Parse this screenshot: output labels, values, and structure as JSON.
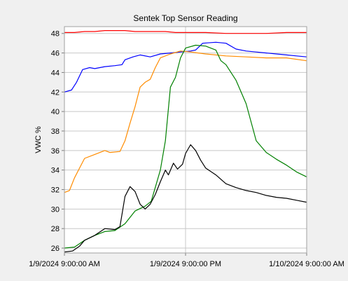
{
  "chart_data": {
    "type": "line",
    "title": "Sentek Top Sensor Reading",
    "xlabel": "",
    "ylabel": "VWC %",
    "x_ticks": [
      "1/9/2024 9:00:00 AM",
      "1/9/2024 9:00:00 PM",
      "1/10/2024 9:00:00 AM"
    ],
    "x_range_hours": [
      0,
      24
    ],
    "ylim": [
      25.5,
      48.7
    ],
    "y_ticks": [
      26,
      28,
      30,
      32,
      34,
      36,
      38,
      40,
      42,
      44,
      46,
      48
    ],
    "grid": true,
    "legend": "none",
    "series": [
      {
        "color": "#ff0000",
        "points": [
          [
            0,
            48.1
          ],
          [
            1,
            48.1
          ],
          [
            2,
            48.2
          ],
          [
            3,
            48.2
          ],
          [
            4,
            48.3
          ],
          [
            5,
            48.3
          ],
          [
            6,
            48.3
          ],
          [
            7,
            48.2
          ],
          [
            8,
            48.2
          ],
          [
            9,
            48.2
          ],
          [
            10,
            48.2
          ],
          [
            11,
            48.1
          ],
          [
            12,
            48.1
          ],
          [
            14,
            48.1
          ],
          [
            16,
            48.0
          ],
          [
            18,
            48.0
          ],
          [
            20,
            48.0
          ],
          [
            22,
            48.1
          ],
          [
            24,
            48.1
          ]
        ]
      },
      {
        "color": "#0000ff",
        "points": [
          [
            0,
            42.0
          ],
          [
            0.7,
            42.2
          ],
          [
            1.2,
            43.0
          ],
          [
            1.8,
            44.3
          ],
          [
            2.5,
            44.5
          ],
          [
            3,
            44.4
          ],
          [
            4,
            44.6
          ],
          [
            5,
            44.7
          ],
          [
            5.7,
            44.8
          ],
          [
            6,
            45.3
          ],
          [
            6.8,
            45.6
          ],
          [
            7.5,
            45.8
          ],
          [
            8.5,
            45.6
          ],
          [
            9.5,
            45.9
          ],
          [
            10.5,
            46.0
          ],
          [
            11.5,
            46.1
          ],
          [
            12.5,
            46.2
          ],
          [
            13,
            46.3
          ],
          [
            13.7,
            47.0
          ],
          [
            15,
            47.1
          ],
          [
            16,
            47.0
          ],
          [
            17,
            46.4
          ],
          [
            18,
            46.2
          ],
          [
            19,
            46.1
          ],
          [
            20,
            46.0
          ],
          [
            21,
            45.9
          ],
          [
            22,
            45.8
          ],
          [
            23,
            45.7
          ],
          [
            24,
            45.6
          ]
        ]
      },
      {
        "color": "#ff8c00",
        "points": [
          [
            0,
            31.7
          ],
          [
            0.5,
            31.9
          ],
          [
            1,
            33.2
          ],
          [
            1.5,
            34.2
          ],
          [
            2,
            35.2
          ],
          [
            3,
            35.6
          ],
          [
            4,
            36.0
          ],
          [
            4.5,
            35.8
          ],
          [
            5.5,
            35.9
          ],
          [
            6,
            37.0
          ],
          [
            6.5,
            38.8
          ],
          [
            7,
            40.5
          ],
          [
            7.5,
            42.5
          ],
          [
            8,
            43.0
          ],
          [
            8.5,
            43.3
          ],
          [
            9,
            44.5
          ],
          [
            9.5,
            45.5
          ],
          [
            10.5,
            45.9
          ],
          [
            11.5,
            46.2
          ],
          [
            12.5,
            46.1
          ],
          [
            14,
            45.9
          ],
          [
            16,
            45.7
          ],
          [
            18,
            45.6
          ],
          [
            20,
            45.5
          ],
          [
            22,
            45.5
          ],
          [
            24,
            45.2
          ]
        ]
      },
      {
        "color": "#008000",
        "points": [
          [
            0,
            26.0
          ],
          [
            1,
            26.1
          ],
          [
            2,
            26.8
          ],
          [
            3,
            27.3
          ],
          [
            4,
            27.7
          ],
          [
            5,
            27.8
          ],
          [
            6,
            28.5
          ],
          [
            7,
            29.8
          ],
          [
            8,
            30.3
          ],
          [
            8.6,
            30.8
          ],
          [
            9.5,
            34.0
          ],
          [
            10,
            37.0
          ],
          [
            10.5,
            42.5
          ],
          [
            11,
            43.5
          ],
          [
            11.5,
            45.5
          ],
          [
            12,
            46.5
          ],
          [
            13,
            46.8
          ],
          [
            14,
            46.7
          ],
          [
            15,
            46.3
          ],
          [
            15.5,
            45.2
          ],
          [
            16,
            44.8
          ],
          [
            17,
            43.2
          ],
          [
            18,
            40.8
          ],
          [
            19,
            37.0
          ],
          [
            20,
            35.8
          ],
          [
            21,
            35.1
          ],
          [
            22,
            34.5
          ],
          [
            23,
            33.8
          ],
          [
            24,
            33.3
          ]
        ]
      },
      {
        "color": "#000000",
        "points": [
          [
            0,
            25.6
          ],
          [
            0.8,
            25.7
          ],
          [
            1.5,
            26.2
          ],
          [
            2,
            26.8
          ],
          [
            3,
            27.3
          ],
          [
            4,
            28.0
          ],
          [
            5,
            27.9
          ],
          [
            5.5,
            28.2
          ],
          [
            6,
            31.3
          ],
          [
            6.5,
            32.3
          ],
          [
            7,
            31.8
          ],
          [
            7.5,
            30.5
          ],
          [
            8,
            30.0
          ],
          [
            8.5,
            30.5
          ],
          [
            9,
            31.5
          ],
          [
            9.5,
            32.8
          ],
          [
            10,
            34.0
          ],
          [
            10.3,
            33.5
          ],
          [
            10.8,
            34.7
          ],
          [
            11.2,
            34.1
          ],
          [
            11.7,
            34.6
          ],
          [
            12,
            35.7
          ],
          [
            12.5,
            36.6
          ],
          [
            13,
            36.0
          ],
          [
            13.5,
            35.0
          ],
          [
            14,
            34.2
          ],
          [
            15,
            33.5
          ],
          [
            16,
            32.6
          ],
          [
            17,
            32.2
          ],
          [
            18,
            31.9
          ],
          [
            19,
            31.7
          ],
          [
            20,
            31.4
          ],
          [
            21,
            31.2
          ],
          [
            22,
            31.1
          ],
          [
            23,
            30.9
          ],
          [
            24,
            30.7
          ]
        ]
      }
    ]
  }
}
